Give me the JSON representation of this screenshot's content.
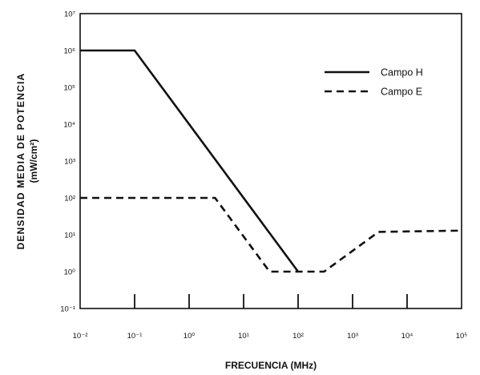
{
  "chart_data": {
    "type": "line",
    "xlabel": "FRECUENCIA (MHz)",
    "ylabel_line1": "DENSIDAD MEDIA DE POTENCIA",
    "ylabel_line2": "(mW/cm²)",
    "x_scale": "log",
    "y_scale": "log",
    "xlim": [
      0.01,
      100000
    ],
    "ylim": [
      0.1,
      10000000
    ],
    "x_ticks": [
      {
        "value": 0.01,
        "label": "10⁻²"
      },
      {
        "value": 0.1,
        "label": "10⁻¹"
      },
      {
        "value": 1,
        "label": "10⁰"
      },
      {
        "value": 10,
        "label": "10¹"
      },
      {
        "value": 100,
        "label": "10²"
      },
      {
        "value": 1000,
        "label": "10³"
      },
      {
        "value": 10000,
        "label": "10⁴"
      },
      {
        "value": 100000,
        "label": "10⁵"
      }
    ],
    "y_ticks": [
      {
        "value": 0.1,
        "label": "10⁻¹"
      },
      {
        "value": 1,
        "label": "10⁰"
      },
      {
        "value": 10,
        "label": "10¹"
      },
      {
        "value": 100,
        "label": "10²"
      },
      {
        "value": 1000,
        "label": "10³"
      },
      {
        "value": 10000,
        "label": "10⁴"
      },
      {
        "value": 100000,
        "label": "10⁵"
      },
      {
        "value": 1000000,
        "label": "10⁶"
      },
      {
        "value": 10000000,
        "label": "10⁷"
      }
    ],
    "legend_position": "top-right",
    "series": [
      {
        "name": "Campo H",
        "style": "solid",
        "color": "#111111",
        "points": [
          [
            0.01,
            1000000
          ],
          [
            0.1,
            1000000
          ],
          [
            100,
            1
          ]
        ]
      },
      {
        "name": "Campo E",
        "style": "dashed",
        "color": "#111111",
        "points": [
          [
            0.01,
            100
          ],
          [
            3,
            100
          ],
          [
            30,
            1
          ],
          [
            300,
            1
          ],
          [
            3000,
            12
          ],
          [
            100000,
            13
          ]
        ]
      }
    ]
  }
}
